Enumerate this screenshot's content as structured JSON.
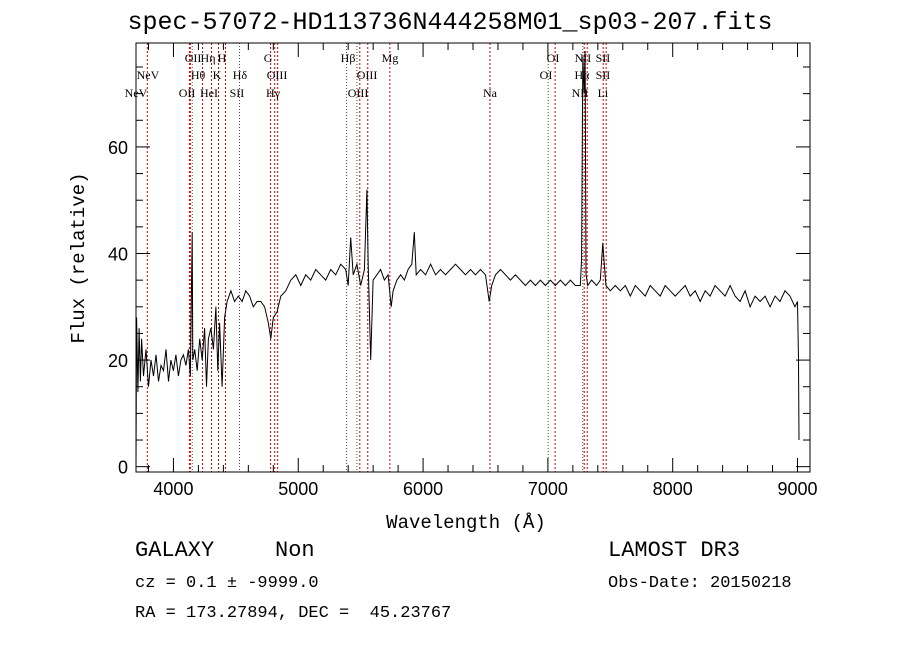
{
  "chart_data": {
    "type": "line",
    "title": "spec-57072-HD113736N444258M01_sp03-207.fits",
    "xlabel": "Wavelength (Å)",
    "ylabel": "Flux (relative)",
    "xlim": [
      3700,
      9100
    ],
    "ylim": [
      -1,
      79.5
    ],
    "xticks": [
      4000,
      5000,
      6000,
      7000,
      8000,
      9000
    ],
    "xtick_labels": [
      "4000",
      "5000",
      "6000",
      "7000",
      "8000",
      "9000"
    ],
    "yticks": [
      0,
      20,
      40,
      60
    ],
    "ytick_labels": [
      "0",
      "20",
      "40",
      "60"
    ],
    "grid": false,
    "series": [
      {
        "name": "spectrum",
        "points": [
          [
            3700,
            0
          ],
          [
            3705,
            28
          ],
          [
            3715,
            14
          ],
          [
            3725,
            26
          ],
          [
            3735,
            16
          ],
          [
            3745,
            24
          ],
          [
            3760,
            17
          ],
          [
            3780,
            22
          ],
          [
            3800,
            15
          ],
          [
            3820,
            20
          ],
          [
            3840,
            17
          ],
          [
            3860,
            21
          ],
          [
            3880,
            16
          ],
          [
            3900,
            19
          ],
          [
            3920,
            18
          ],
          [
            3940,
            22
          ],
          [
            3960,
            16
          ],
          [
            3980,
            20
          ],
          [
            4000,
            18
          ],
          [
            4020,
            21
          ],
          [
            4040,
            17
          ],
          [
            4060,
            20
          ],
          [
            4080,
            21
          ],
          [
            4100,
            19
          ],
          [
            4120,
            22
          ],
          [
            4135,
            17
          ],
          [
            4150,
            44
          ],
          [
            4155,
            20
          ],
          [
            4170,
            22
          ],
          [
            4190,
            18
          ],
          [
            4210,
            24
          ],
          [
            4230,
            20
          ],
          [
            4250,
            26
          ],
          [
            4265,
            15
          ],
          [
            4280,
            24
          ],
          [
            4300,
            26
          ],
          [
            4320,
            22
          ],
          [
            4340,
            30
          ],
          [
            4355,
            18
          ],
          [
            4370,
            27
          ],
          [
            4390,
            15
          ],
          [
            4410,
            28
          ],
          [
            4430,
            31
          ],
          [
            4460,
            33
          ],
          [
            4490,
            31
          ],
          [
            4520,
            32
          ],
          [
            4550,
            31
          ],
          [
            4580,
            33
          ],
          [
            4610,
            32
          ],
          [
            4640,
            30
          ],
          [
            4670,
            31
          ],
          [
            4700,
            31
          ],
          [
            4730,
            30
          ],
          [
            4760,
            27
          ],
          [
            4780,
            24
          ],
          [
            4800,
            28
          ],
          [
            4830,
            29
          ],
          [
            4860,
            32
          ],
          [
            4900,
            33
          ],
          [
            4940,
            35
          ],
          [
            4980,
            36
          ],
          [
            5020,
            34
          ],
          [
            5060,
            36
          ],
          [
            5100,
            35
          ],
          [
            5140,
            37
          ],
          [
            5180,
            36
          ],
          [
            5220,
            35
          ],
          [
            5260,
            37
          ],
          [
            5300,
            36
          ],
          [
            5340,
            38
          ],
          [
            5380,
            37
          ],
          [
            5400,
            34
          ],
          [
            5420,
            43
          ],
          [
            5440,
            36
          ],
          [
            5470,
            38
          ],
          [
            5500,
            34
          ],
          [
            5530,
            37
          ],
          [
            5550,
            52
          ],
          [
            5560,
            38
          ],
          [
            5580,
            20
          ],
          [
            5600,
            35
          ],
          [
            5630,
            36
          ],
          [
            5660,
            37
          ],
          [
            5690,
            35
          ],
          [
            5720,
            36
          ],
          [
            5745,
            30
          ],
          [
            5760,
            33
          ],
          [
            5790,
            35
          ],
          [
            5820,
            36
          ],
          [
            5850,
            35
          ],
          [
            5880,
            37
          ],
          [
            5910,
            38
          ],
          [
            5930,
            44
          ],
          [
            5945,
            36
          ],
          [
            5980,
            37
          ],
          [
            6020,
            36
          ],
          [
            6060,
            38
          ],
          [
            6100,
            36
          ],
          [
            6140,
            37
          ],
          [
            6180,
            36
          ],
          [
            6220,
            37
          ],
          [
            6260,
            38
          ],
          [
            6300,
            37
          ],
          [
            6340,
            36
          ],
          [
            6380,
            37
          ],
          [
            6420,
            36
          ],
          [
            6460,
            37
          ],
          [
            6500,
            36
          ],
          [
            6530,
            31
          ],
          [
            6550,
            34
          ],
          [
            6580,
            36
          ],
          [
            6620,
            37
          ],
          [
            6660,
            36
          ],
          [
            6700,
            35
          ],
          [
            6740,
            36
          ],
          [
            6780,
            35
          ],
          [
            6820,
            34
          ],
          [
            6860,
            35
          ],
          [
            6900,
            34
          ],
          [
            6940,
            35
          ],
          [
            6980,
            34
          ],
          [
            7020,
            35
          ],
          [
            7060,
            34
          ],
          [
            7100,
            35
          ],
          [
            7140,
            34
          ],
          [
            7180,
            35
          ],
          [
            7220,
            34
          ],
          [
            7260,
            34
          ],
          [
            7270,
            39
          ],
          [
            7280,
            77
          ],
          [
            7290,
            70
          ],
          [
            7298,
            78
          ],
          [
            7305,
            36
          ],
          [
            7320,
            34
          ],
          [
            7350,
            35
          ],
          [
            7390,
            34
          ],
          [
            7420,
            35
          ],
          [
            7440,
            42
          ],
          [
            7452,
            38
          ],
          [
            7465,
            34
          ],
          [
            7500,
            33
          ],
          [
            7540,
            34
          ],
          [
            7580,
            33
          ],
          [
            7620,
            34
          ],
          [
            7660,
            32
          ],
          [
            7700,
            34
          ],
          [
            7740,
            33
          ],
          [
            7780,
            32
          ],
          [
            7820,
            34
          ],
          [
            7860,
            33
          ],
          [
            7900,
            32
          ],
          [
            7940,
            34
          ],
          [
            7980,
            33
          ],
          [
            8020,
            32
          ],
          [
            8060,
            33
          ],
          [
            8100,
            34
          ],
          [
            8140,
            32
          ],
          [
            8180,
            33
          ],
          [
            8220,
            31
          ],
          [
            8260,
            33
          ],
          [
            8300,
            32
          ],
          [
            8340,
            34
          ],
          [
            8380,
            33
          ],
          [
            8420,
            32
          ],
          [
            8460,
            34
          ],
          [
            8500,
            32
          ],
          [
            8540,
            31
          ],
          [
            8580,
            33
          ],
          [
            8620,
            30
          ],
          [
            8660,
            32
          ],
          [
            8700,
            31
          ],
          [
            8740,
            32
          ],
          [
            8780,
            30
          ],
          [
            8820,
            32
          ],
          [
            8860,
            31
          ],
          [
            8900,
            33
          ],
          [
            8940,
            32
          ],
          [
            8980,
            30
          ],
          [
            9000,
            31
          ],
          [
            9008,
            20
          ],
          [
            9012,
            5
          ]
        ]
      }
    ],
    "red_lines": [
      3791,
      4128,
      4135,
      4233,
      4305,
      4361,
      4417,
      4778,
      4811,
      4835,
      5493,
      5557,
      5734,
      6536,
      7058,
      7291,
      7315,
      7443,
      7467
    ],
    "black_lines": [
      4150,
      4530,
      5388,
      5470,
      7002,
      7280
    ],
    "line_labels": [
      {
        "text": "OII",
        "wl": 4157,
        "row": 1
      },
      {
        "text": "Hη",
        "wl": 4277,
        "row": 1
      },
      {
        "text": "H",
        "wl": 4389,
        "row": 1
      },
      {
        "text": "G",
        "wl": 4758,
        "row": 1
      },
      {
        "text": "Hβ",
        "wl": 5399,
        "row": 1
      },
      {
        "text": "Mg",
        "wl": 5735,
        "row": 1
      },
      {
        "text": "OI",
        "wl": 7041,
        "row": 1
      },
      {
        "text": "NII",
        "wl": 7281,
        "row": 1
      },
      {
        "text": "SII",
        "wl": 7441,
        "row": 1
      },
      {
        "text": "NeV",
        "wl": 3796,
        "row": 2
      },
      {
        "text": "Hθ",
        "wl": 4197,
        "row": 2
      },
      {
        "text": "K",
        "wl": 4349,
        "row": 2
      },
      {
        "text": "Hδ",
        "wl": 4533,
        "row": 2
      },
      {
        "text": "OIII",
        "wl": 4830,
        "row": 2
      },
      {
        "text": "OIII",
        "wl": 5551,
        "row": 2
      },
      {
        "text": "OI",
        "wl": 6985,
        "row": 2
      },
      {
        "text": "Hα",
        "wl": 7273,
        "row": 2
      },
      {
        "text": "SII",
        "wl": 7441,
        "row": 2
      },
      {
        "text": "NeV",
        "wl": 3700,
        "row": 3
      },
      {
        "text": "OII",
        "wl": 4109,
        "row": 3
      },
      {
        "text": "HeI",
        "wl": 4285,
        "row": 3
      },
      {
        "text": "SII",
        "wl": 4509,
        "row": 3
      },
      {
        "text": "Hγ",
        "wl": 4798,
        "row": 3
      },
      {
        "text": "OIII",
        "wl": 5479,
        "row": 3
      },
      {
        "text": "Na",
        "wl": 6536,
        "row": 3
      },
      {
        "text": "NII",
        "wl": 7257,
        "row": 3
      },
      {
        "text": "Li",
        "wl": 7441,
        "row": 3
      }
    ]
  },
  "info": {
    "class": "GALAXY",
    "subclass": "Non",
    "survey": "LAMOST DR3",
    "cz": "cz = 0.1 ± -9999.0",
    "obs_date": "Obs-Date: 20150218",
    "coords": "RA = 173.27894, DEC =  45.23767"
  },
  "colors": {
    "red_line": "#cc0000",
    "black_line": "#000000",
    "spectrum": "#000000"
  }
}
